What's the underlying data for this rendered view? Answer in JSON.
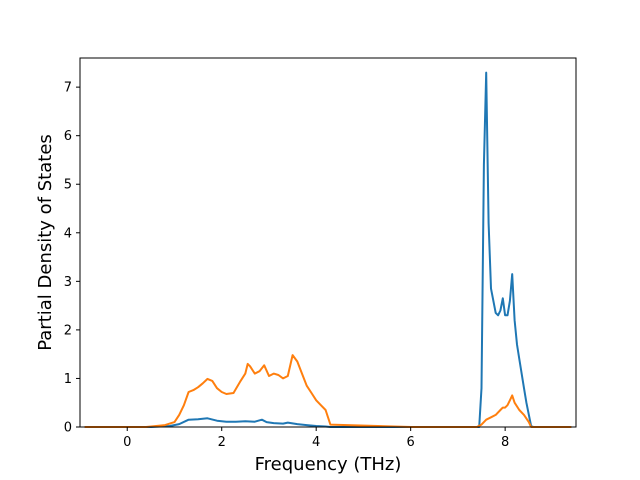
{
  "chart_data": {
    "type": "line",
    "title": "",
    "xlabel": "Frequency (THz)",
    "ylabel": "Partial Density of States",
    "xlim": [
      -1.0,
      9.5
    ],
    "ylim": [
      0,
      7.6
    ],
    "xticks": [
      0,
      2,
      4,
      6,
      8
    ],
    "yticks": [
      0,
      1,
      2,
      3,
      4,
      5,
      6,
      7
    ],
    "grid": false,
    "legend": "none",
    "series": [
      {
        "color": "#1f77b4",
        "x": [
          -0.9,
          0.5,
          0.9,
          1.1,
          1.3,
          1.5,
          1.7,
          1.9,
          2.1,
          2.3,
          2.5,
          2.7,
          2.85,
          2.95,
          3.1,
          3.3,
          3.4,
          3.6,
          3.8,
          4.0,
          4.2,
          4.3,
          6.0,
          7.0,
          7.45,
          7.5,
          7.55,
          7.6,
          7.65,
          7.7,
          7.8,
          7.85,
          7.9,
          7.95,
          8.0,
          8.05,
          8.1,
          8.15,
          8.2,
          8.25,
          8.3,
          8.4,
          8.45,
          8.55,
          8.6,
          9.4
        ],
        "y": [
          0,
          0,
          0.02,
          0.06,
          0.15,
          0.16,
          0.18,
          0.13,
          0.11,
          0.11,
          0.12,
          0.11,
          0.15,
          0.1,
          0.08,
          0.07,
          0.09,
          0.06,
          0.04,
          0.02,
          0.01,
          0,
          0,
          0,
          0,
          0.8,
          5.4,
          7.3,
          4.2,
          2.85,
          2.35,
          2.3,
          2.4,
          2.65,
          2.3,
          2.3,
          2.6,
          3.15,
          2.2,
          1.7,
          1.4,
          0.8,
          0.5,
          0.02,
          0,
          0
        ]
      },
      {
        "color": "#ff7f0e",
        "x": [
          -0.9,
          0.4,
          0.8,
          1.0,
          1.1,
          1.2,
          1.3,
          1.4,
          1.5,
          1.6,
          1.7,
          1.8,
          1.9,
          2.0,
          2.1,
          2.25,
          2.4,
          2.5,
          2.55,
          2.6,
          2.7,
          2.8,
          2.9,
          3.0,
          3.1,
          3.2,
          3.3,
          3.4,
          3.5,
          3.6,
          3.7,
          3.8,
          3.9,
          4.0,
          4.1,
          4.2,
          4.3,
          6.0,
          7.4,
          7.5,
          7.6,
          7.7,
          7.8,
          7.9,
          7.95,
          8.0,
          8.05,
          8.1,
          8.15,
          8.2,
          8.3,
          8.4,
          8.5,
          8.55,
          9.4
        ],
        "y": [
          0,
          0,
          0.04,
          0.1,
          0.25,
          0.45,
          0.72,
          0.76,
          0.82,
          0.9,
          0.99,
          0.95,
          0.8,
          0.72,
          0.68,
          0.7,
          0.95,
          1.1,
          1.3,
          1.25,
          1.1,
          1.15,
          1.27,
          1.05,
          1.1,
          1.07,
          1.0,
          1.05,
          1.48,
          1.35,
          1.1,
          0.85,
          0.7,
          0.55,
          0.45,
          0.35,
          0.05,
          0,
          0,
          0.05,
          0.15,
          0.2,
          0.25,
          0.35,
          0.4,
          0.4,
          0.45,
          0.55,
          0.65,
          0.5,
          0.35,
          0.25,
          0.1,
          0,
          0
        ]
      }
    ]
  }
}
